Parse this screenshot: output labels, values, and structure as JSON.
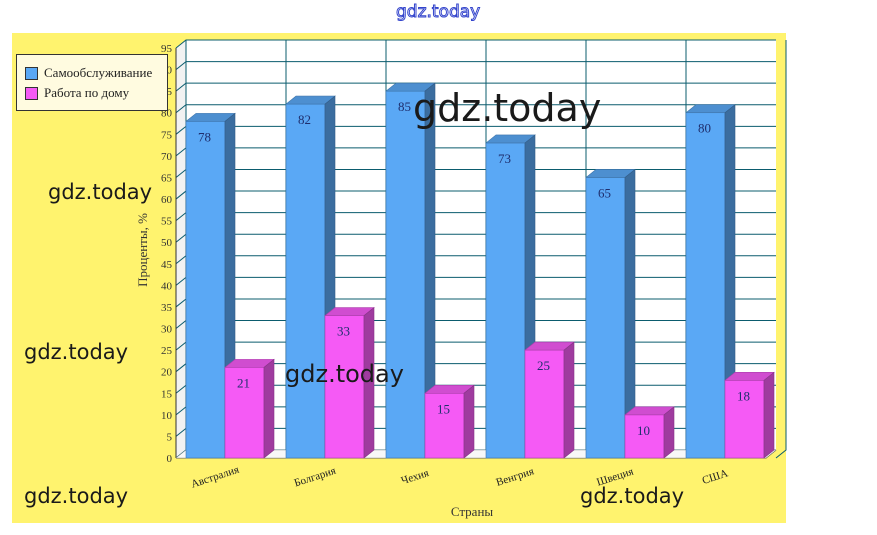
{
  "watermark": "gdz.today",
  "chart_data": {
    "type": "bar",
    "categories": [
      "Австралия",
      "Болгария",
      "Чехия",
      "Венгрия",
      "Швеция",
      "США"
    ],
    "series": [
      {
        "name": "Самообслуживание",
        "values": [
          78,
          82,
          85,
          73,
          65,
          80
        ],
        "color": "#5aa8f5"
      },
      {
        "name": "Работа по дому",
        "values": [
          21,
          33,
          15,
          25,
          10,
          18
        ],
        "color": "#f55af5"
      }
    ],
    "title": "",
    "xlabel": "Страны",
    "ylabel": "Проценты, %",
    "ylim": [
      0,
      95
    ],
    "yticks": [
      0,
      5,
      10,
      15,
      20,
      25,
      30,
      35,
      40,
      45,
      50,
      55,
      60,
      65,
      70,
      75,
      80,
      85,
      90,
      95
    ],
    "grid": true,
    "legend_position": "top-left",
    "background_color": "#fff36e",
    "plot_color": "#ffffff",
    "grid_color": "#0b5c6e"
  }
}
